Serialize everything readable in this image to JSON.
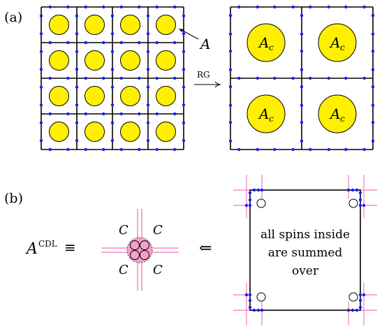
{
  "panel_a": {
    "label": "(a)",
    "tensor_label": "A",
    "rg_label": "RG",
    "coarse_label_main": "A",
    "coarse_label_sub": "c"
  },
  "panel_b": {
    "label": "(b)",
    "cdl_main": "A",
    "cdl_sup": "CDL",
    "equiv": "≡",
    "corner_label": "C",
    "arrow": "⇐",
    "box_text": [
      "all spins inside",
      "are summed",
      "over"
    ]
  },
  "colors": {
    "tensor_fill": "#ffef00",
    "dot": "#1a1aff",
    "cdl_line": "#f48fc8",
    "cdl_fill": "#f4a0cc",
    "line": "#000000"
  }
}
